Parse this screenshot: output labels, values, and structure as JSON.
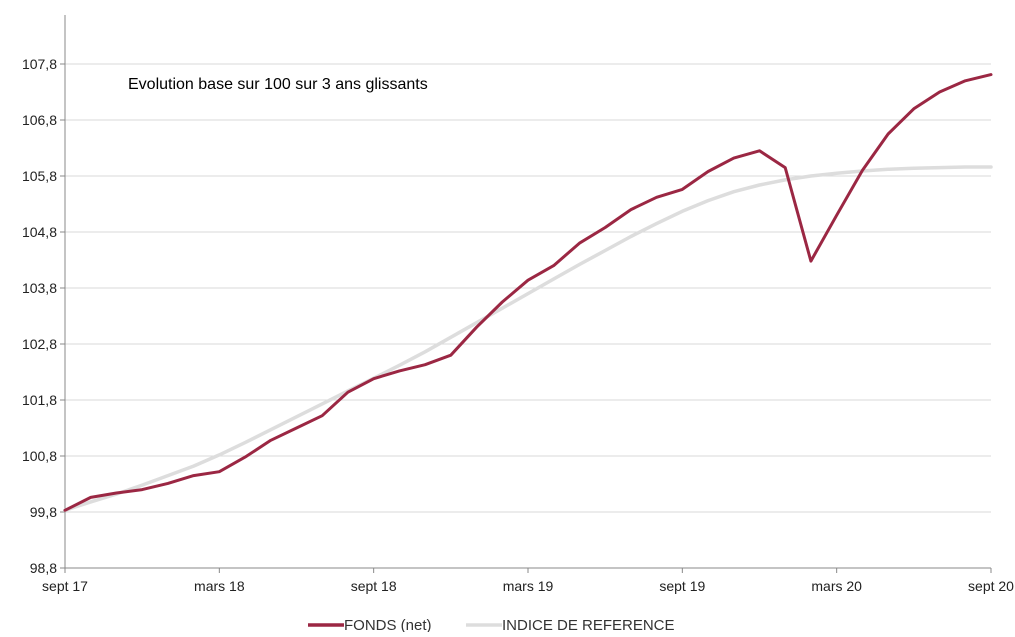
{
  "chart_data": {
    "type": "line",
    "title": "Evolution base sur 100 sur 3 ans glissants",
    "xlabel": "",
    "ylabel": "",
    "ylim": [
      98.8,
      108.8
    ],
    "yticks": [
      "98,8",
      "99,8",
      "100,8",
      "101,8",
      "102,8",
      "103,8",
      "104,8",
      "105,8",
      "106,8",
      "107,8"
    ],
    "xlim": [
      "2017-09",
      "2020-09"
    ],
    "xticks": [
      {
        "label": "sept 17",
        "month": "2017-09"
      },
      {
        "label": "mars 18",
        "month": "2018-03"
      },
      {
        "label": "sept 18",
        "month": "2018-09"
      },
      {
        "label": "mars 19",
        "month": "2019-03"
      },
      {
        "label": "sept 19",
        "month": "2019-09"
      },
      {
        "label": "mars 20",
        "month": "2020-03"
      },
      {
        "label": "sept 20",
        "month": "2020-09"
      }
    ],
    "grid": true,
    "legend_position": "bottom",
    "series": [
      {
        "name": "FONDS (net)",
        "color": "#9b2743",
        "points": [
          [
            "2017-09",
            99.83
          ],
          [
            "2017-10",
            100.06
          ],
          [
            "2017-11",
            100.14
          ],
          [
            "2017-12",
            100.2
          ],
          [
            "2018-01",
            100.31
          ],
          [
            "2018-02",
            100.45
          ],
          [
            "2018-03",
            100.52
          ],
          [
            "2018-04",
            100.78
          ],
          [
            "2018-05",
            101.08
          ],
          [
            "2018-06",
            101.3
          ],
          [
            "2018-07",
            101.52
          ],
          [
            "2018-08",
            101.94
          ],
          [
            "2018-09",
            102.18
          ],
          [
            "2018-10",
            102.32
          ],
          [
            "2018-11",
            102.43
          ],
          [
            "2018-12",
            102.6
          ],
          [
            "2019-01",
            103.1
          ],
          [
            "2019-02",
            103.55
          ],
          [
            "2019-03",
            103.94
          ],
          [
            "2019-04",
            104.2
          ],
          [
            "2019-05",
            104.6
          ],
          [
            "2019-06",
            104.88
          ],
          [
            "2019-07",
            105.2
          ],
          [
            "2019-08",
            105.42
          ],
          [
            "2019-09",
            105.56
          ],
          [
            "2019-10",
            105.88
          ],
          [
            "2019-11",
            106.12
          ],
          [
            "2019-12",
            106.25
          ],
          [
            "2020-01",
            105.95
          ],
          [
            "2020-02",
            104.28
          ],
          [
            "2020-03",
            105.1
          ],
          [
            "2020-04",
            105.9
          ],
          [
            "2020-05",
            106.55
          ],
          [
            "2020-06",
            107.0
          ],
          [
            "2020-07",
            107.3
          ],
          [
            "2020-08",
            107.5
          ],
          [
            "2020-09",
            107.61
          ]
        ]
      },
      {
        "name": "INDICE DE REFERENCE",
        "color": "#dddddd",
        "points": [
          [
            "2017-09",
            99.83
          ],
          [
            "2017-10",
            99.98
          ],
          [
            "2017-11",
            100.12
          ],
          [
            "2017-12",
            100.28
          ],
          [
            "2018-01",
            100.45
          ],
          [
            "2018-02",
            100.62
          ],
          [
            "2018-03",
            100.82
          ],
          [
            "2018-04",
            101.04
          ],
          [
            "2018-05",
            101.27
          ],
          [
            "2018-06",
            101.5
          ],
          [
            "2018-07",
            101.73
          ],
          [
            "2018-08",
            101.96
          ],
          [
            "2018-09",
            102.19
          ],
          [
            "2018-10",
            102.42
          ],
          [
            "2018-11",
            102.66
          ],
          [
            "2018-12",
            102.92
          ],
          [
            "2019-01",
            103.18
          ],
          [
            "2019-02",
            103.44
          ],
          [
            "2019-03",
            103.7
          ],
          [
            "2019-04",
            103.96
          ],
          [
            "2019-05",
            104.22
          ],
          [
            "2019-06",
            104.47
          ],
          [
            "2019-07",
            104.72
          ],
          [
            "2019-08",
            104.95
          ],
          [
            "2019-09",
            105.17
          ],
          [
            "2019-10",
            105.36
          ],
          [
            "2019-11",
            105.52
          ],
          [
            "2019-12",
            105.64
          ],
          [
            "2020-01",
            105.73
          ],
          [
            "2020-02",
            105.8
          ],
          [
            "2020-03",
            105.85
          ],
          [
            "2020-04",
            105.89
          ],
          [
            "2020-05",
            105.92
          ],
          [
            "2020-06",
            105.94
          ],
          [
            "2020-07",
            105.95
          ],
          [
            "2020-08",
            105.96
          ],
          [
            "2020-09",
            105.96
          ]
        ]
      }
    ]
  }
}
